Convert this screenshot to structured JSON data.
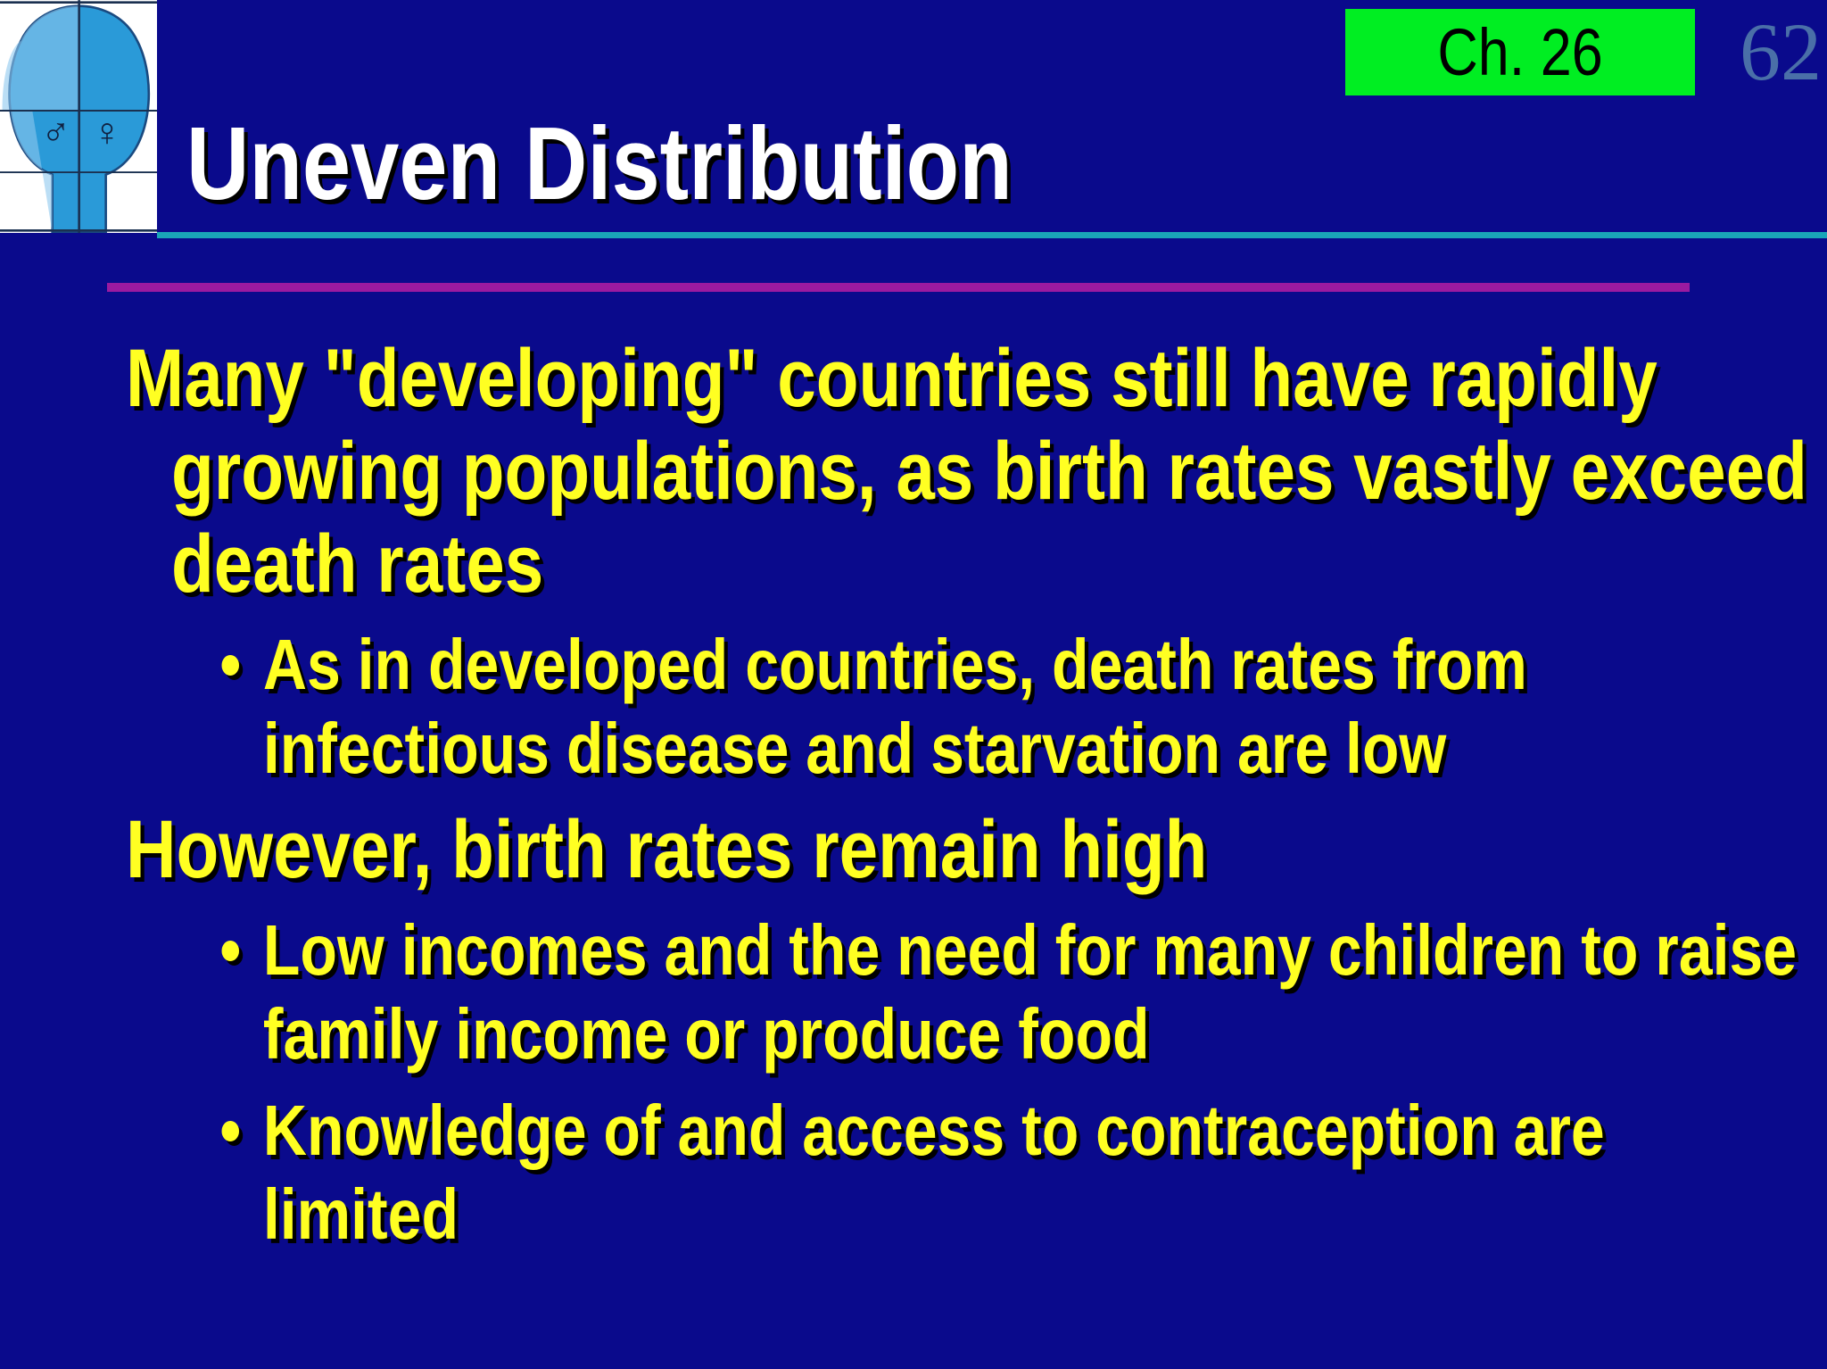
{
  "header": {
    "title": "Uneven Distribution",
    "chapter": "Ch. 26",
    "page_number": "62"
  },
  "logo": {
    "male": "♂",
    "female": "♀"
  },
  "body": {
    "items": [
      {
        "text": "Many \"developing\" countries still have rapidly growing populations, as birth rates vastly exceed death rates",
        "subitems": [
          "As in developed countries, death rates from infectious disease and starvation are low"
        ]
      },
      {
        "text": "However, birth rates remain high",
        "subitems": [
          "Low incomes and the need for many children to raise family income or produce food",
          "Knowledge of and access to contraception are limited"
        ]
      }
    ]
  }
}
